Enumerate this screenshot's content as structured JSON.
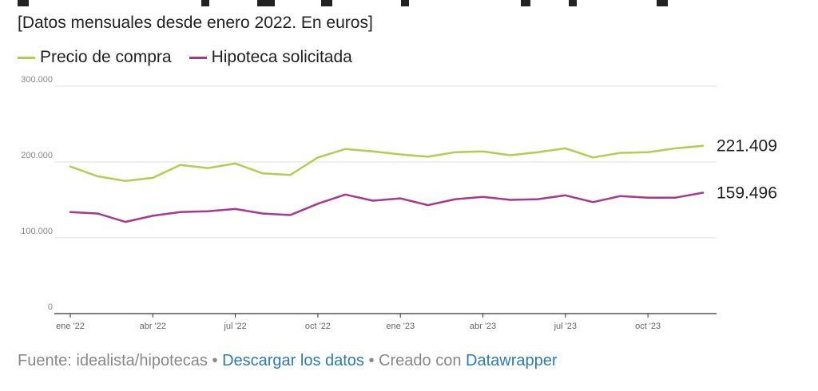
{
  "header": {
    "subtitle": "[Datos mensuales desde enero 2022. En euros]"
  },
  "footer": {
    "source": "Fuente: idealista/hipotecas",
    "sep1": " • ",
    "download": "Descargar los datos",
    "sep2": " • Creado con ",
    "tool": "Datawrapper"
  },
  "chart_data": {
    "type": "line",
    "x": [
      "2022-01",
      "2022-02",
      "2022-03",
      "2022-04",
      "2022-05",
      "2022-06",
      "2022-07",
      "2022-08",
      "2022-09",
      "2022-10",
      "2022-11",
      "2022-12",
      "2023-01",
      "2023-02",
      "2023-03",
      "2023-04",
      "2023-05",
      "2023-06",
      "2023-07",
      "2023-08",
      "2023-09",
      "2023-10",
      "2023-11",
      "2023-12"
    ],
    "x_tick_labels": [
      {
        "x": "2022-01",
        "label": "ene '22"
      },
      {
        "x": "2022-04",
        "label": "abr '22"
      },
      {
        "x": "2022-07",
        "label": "jul '22"
      },
      {
        "x": "2022-10",
        "label": "oct '22"
      },
      {
        "x": "2023-01",
        "label": "ene '23"
      },
      {
        "x": "2023-04",
        "label": "abr '23"
      },
      {
        "x": "2023-07",
        "label": "jul '23"
      },
      {
        "x": "2023-10",
        "label": "oct '23"
      }
    ],
    "y_ticks": [
      0,
      100000,
      200000,
      300000
    ],
    "y_tick_labels": [
      "0",
      "100.000",
      "200.000",
      "300.000"
    ],
    "ylim": [
      0,
      300000
    ],
    "grid": true,
    "legend_position": "top-left",
    "series": [
      {
        "name": "Precio de compra",
        "color": "#b5cc4f",
        "values": [
          194000,
          181000,
          175000,
          179000,
          196000,
          192000,
          198000,
          185000,
          183000,
          206000,
          217000,
          214000,
          210000,
          207000,
          213000,
          214000,
          209000,
          213000,
          218000,
          206000,
          212000,
          213000,
          218000,
          221409
        ],
        "end_label": "221.409"
      },
      {
        "name": "Hipoteca solicitada",
        "color": "#a6388f",
        "values": [
          134000,
          132000,
          121000,
          129000,
          134000,
          135000,
          138000,
          132000,
          130000,
          145000,
          157000,
          149000,
          152000,
          143000,
          151000,
          154000,
          150000,
          151000,
          156000,
          147000,
          155000,
          153000,
          153000,
          159496
        ],
        "end_label": "159.496"
      }
    ]
  }
}
